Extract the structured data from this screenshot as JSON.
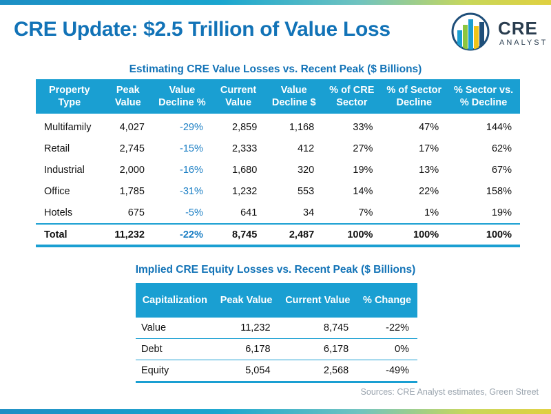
{
  "header": {
    "title": "CRE Update: $2.5 Trillion of Value Loss",
    "logo_name": "CRE",
    "logo_sub": "ANALYST"
  },
  "main_table": {
    "title": "Estimating CRE Value Losses vs. Recent Peak ($ Billions)",
    "columns": [
      "Property Type",
      "Peak Value",
      "Value Decline %",
      "Current Value",
      "Value Decline $",
      "% of CRE Sector",
      "% of Sector Decline",
      "% Sector vs. % Decline"
    ],
    "rows": [
      [
        "Multifamily",
        "4,027",
        "-29%",
        "2,859",
        "1,168",
        "33%",
        "47%",
        "144%"
      ],
      [
        "Retail",
        "2,745",
        "-15%",
        "2,333",
        "412",
        "27%",
        "17%",
        "62%"
      ],
      [
        "Industrial",
        "2,000",
        "-16%",
        "1,680",
        "320",
        "19%",
        "13%",
        "67%"
      ],
      [
        "Office",
        "1,785",
        "-31%",
        "1,232",
        "553",
        "14%",
        "22%",
        "158%"
      ],
      [
        "Hotels",
        "675",
        "-5%",
        "641",
        "34",
        "7%",
        "1%",
        "19%"
      ]
    ],
    "total": [
      "Total",
      "11,232",
      "-22%",
      "8,745",
      "2,487",
      "100%",
      "100%",
      "100%"
    ]
  },
  "equity_table": {
    "title": "Implied CRE Equity Losses vs. Recent Peak ($ Billions)",
    "columns": [
      "Capitalization",
      "Peak Value",
      "Current Value",
      "% Change"
    ],
    "rows": [
      [
        "Value",
        "11,232",
        "8,745",
        "-22%"
      ],
      [
        "Debt",
        "6,178",
        "6,178",
        "0%"
      ],
      [
        "Equity",
        "5,054",
        "2,568",
        "-49%"
      ]
    ]
  },
  "source": "Sources: CRE Analyst estimates, Green Street",
  "colors": {
    "accent": "#1a9fd2",
    "title": "#1273b7",
    "negative": "#1a7ec4"
  }
}
